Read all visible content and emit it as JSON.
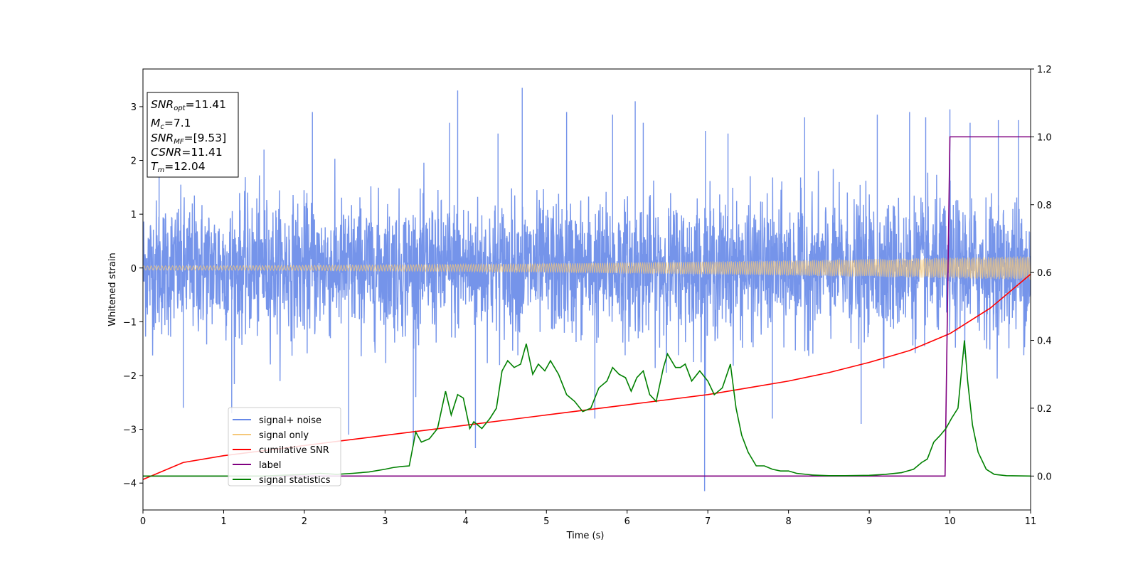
{
  "chart_data": {
    "type": "line",
    "title": "",
    "xlabel": "Time (s)",
    "ylabel": "Whitened strain",
    "xlim": [
      0,
      11
    ],
    "ylim": [
      -4.5,
      3.7
    ],
    "y2lim": [
      -0.1,
      1.2
    ],
    "x_ticks": [
      "0",
      "1",
      "2",
      "3",
      "4",
      "5",
      "6",
      "7",
      "8",
      "9",
      "10",
      "11"
    ],
    "y_ticks": [
      "3",
      "2",
      "1",
      "0",
      "−1",
      "−2",
      "−3",
      "−4"
    ],
    "y2_ticks": [
      "1.2",
      "1.0",
      "0.8",
      "0.6",
      "0.4",
      "0.2",
      "0.0"
    ],
    "annotation": {
      "snr_opt": {
        "name": "SNR",
        "sub": "opt",
        "value": "=11.41"
      },
      "mc": {
        "name": "M",
        "sub": "c",
        "value": "=7.1"
      },
      "snr_mf": {
        "name": "SNR",
        "sub": "MF",
        "value": "=[9.53]"
      },
      "csnr": {
        "name": "CSNR",
        "value": "=11.41"
      },
      "tm": {
        "name": "T",
        "sub": "m",
        "value": "=12.04"
      }
    },
    "legend": {
      "placement": "lower-left",
      "entries": [
        {
          "label": "signal+ noise",
          "color": "#6688e8"
        },
        {
          "label": "signal only",
          "color": "#f5c87a"
        },
        {
          "label": "cumilative SNR",
          "color": "#ff0000"
        },
        {
          "label": "label",
          "color": "#800080"
        },
        {
          "label": "signal statistics",
          "color": "#008000"
        }
      ]
    },
    "series": [
      {
        "name": "signal+ noise",
        "axis": "left",
        "description": "whitened strain noise, approx +/-1.3 sigma band with spikes",
        "spikes": [
          [
            0.2,
            2.1
          ],
          [
            0.5,
            -2.6
          ],
          [
            1.1,
            -2.7
          ],
          [
            1.5,
            2.2
          ],
          [
            2.1,
            2.9
          ],
          [
            2.55,
            -3.1
          ],
          [
            3.35,
            -3.3
          ],
          [
            3.8,
            2.7
          ],
          [
            3.9,
            3.3
          ],
          [
            4.12,
            -3.35
          ],
          [
            4.4,
            2.5
          ],
          [
            4.7,
            3.35
          ],
          [
            5.25,
            2.9
          ],
          [
            5.6,
            -2.8
          ],
          [
            5.82,
            2.85
          ],
          [
            6.1,
            3.1
          ],
          [
            6.2,
            2.7
          ],
          [
            6.96,
            -4.15
          ],
          [
            6.97,
            2.55
          ],
          [
            7.25,
            2.5
          ],
          [
            7.8,
            -2.8
          ],
          [
            8.2,
            2.8
          ],
          [
            8.9,
            -2.9
          ],
          [
            9.1,
            2.85
          ],
          [
            9.5,
            2.9
          ],
          [
            9.7,
            2.8
          ],
          [
            10.0,
            2.95
          ],
          [
            10.25,
            2.7
          ],
          [
            10.6,
            2.75
          ],
          [
            10.85,
            2.75
          ]
        ]
      },
      {
        "name": "signal only",
        "axis": "left",
        "amplitude_start": 0.04,
        "amplitude_end": 0.22
      },
      {
        "name": "cumilative SNR",
        "axis": "right",
        "x": [
          0,
          0.5,
          1,
          1.5,
          2,
          2.5,
          3,
          3.5,
          4,
          4.5,
          5,
          5.5,
          6,
          6.5,
          7,
          7.5,
          8,
          8.5,
          9,
          9.5,
          10,
          10.5,
          11
        ],
        "values": [
          -0.01,
          0.04,
          0.06,
          0.075,
          0.09,
          0.105,
          0.12,
          0.135,
          0.15,
          0.165,
          0.18,
          0.195,
          0.21,
          0.225,
          0.24,
          0.26,
          0.28,
          0.305,
          0.335,
          0.37,
          0.42,
          0.495,
          0.595
        ]
      },
      {
        "name": "label",
        "axis": "right",
        "x": [
          0,
          9.94,
          10.0,
          11
        ],
        "values": [
          0.0,
          0.0,
          1.0,
          1.0
        ]
      },
      {
        "name": "signal statistics",
        "axis": "right",
        "x": [
          0,
          0.5,
          1,
          1.5,
          2,
          2.2,
          2.4,
          2.6,
          2.8,
          3.0,
          3.1,
          3.2,
          3.3,
          3.38,
          3.45,
          3.55,
          3.65,
          3.75,
          3.82,
          3.9,
          3.97,
          4.05,
          4.1,
          4.2,
          4.3,
          4.38,
          4.45,
          4.52,
          4.6,
          4.68,
          4.75,
          4.83,
          4.9,
          4.98,
          5.05,
          5.15,
          5.25,
          5.35,
          5.45,
          5.55,
          5.65,
          5.75,
          5.82,
          5.9,
          5.98,
          6.05,
          6.12,
          6.2,
          6.28,
          6.36,
          6.45,
          6.5,
          6.6,
          6.66,
          6.72,
          6.8,
          6.9,
          7.0,
          7.08,
          7.18,
          7.28,
          7.35,
          7.42,
          7.5,
          7.6,
          7.7,
          7.8,
          7.9,
          8.0,
          8.1,
          8.3,
          8.5,
          8.7,
          9.0,
          9.2,
          9.4,
          9.55,
          9.65,
          9.72,
          9.8,
          9.88,
          9.95,
          10.02,
          10.1,
          10.18,
          10.22,
          10.28,
          10.35,
          10.45,
          10.55,
          10.7,
          11.0
        ],
        "values": [
          0.0,
          0.0,
          0.0,
          0.0,
          0.005,
          0.008,
          0.005,
          0.008,
          0.012,
          0.02,
          0.025,
          0.028,
          0.03,
          0.13,
          0.1,
          0.11,
          0.14,
          0.25,
          0.18,
          0.24,
          0.23,
          0.14,
          0.16,
          0.14,
          0.17,
          0.2,
          0.31,
          0.34,
          0.32,
          0.33,
          0.39,
          0.3,
          0.33,
          0.31,
          0.34,
          0.3,
          0.24,
          0.22,
          0.19,
          0.2,
          0.26,
          0.28,
          0.32,
          0.3,
          0.29,
          0.25,
          0.29,
          0.31,
          0.24,
          0.22,
          0.32,
          0.36,
          0.32,
          0.32,
          0.33,
          0.28,
          0.31,
          0.28,
          0.24,
          0.26,
          0.33,
          0.2,
          0.12,
          0.07,
          0.03,
          0.03,
          0.02,
          0.015,
          0.015,
          0.008,
          0.003,
          0.001,
          0.001,
          0.002,
          0.005,
          0.01,
          0.02,
          0.04,
          0.05,
          0.1,
          0.12,
          0.14,
          0.17,
          0.2,
          0.4,
          0.28,
          0.15,
          0.07,
          0.02,
          0.005,
          0.001,
          0.0
        ]
      }
    ]
  }
}
